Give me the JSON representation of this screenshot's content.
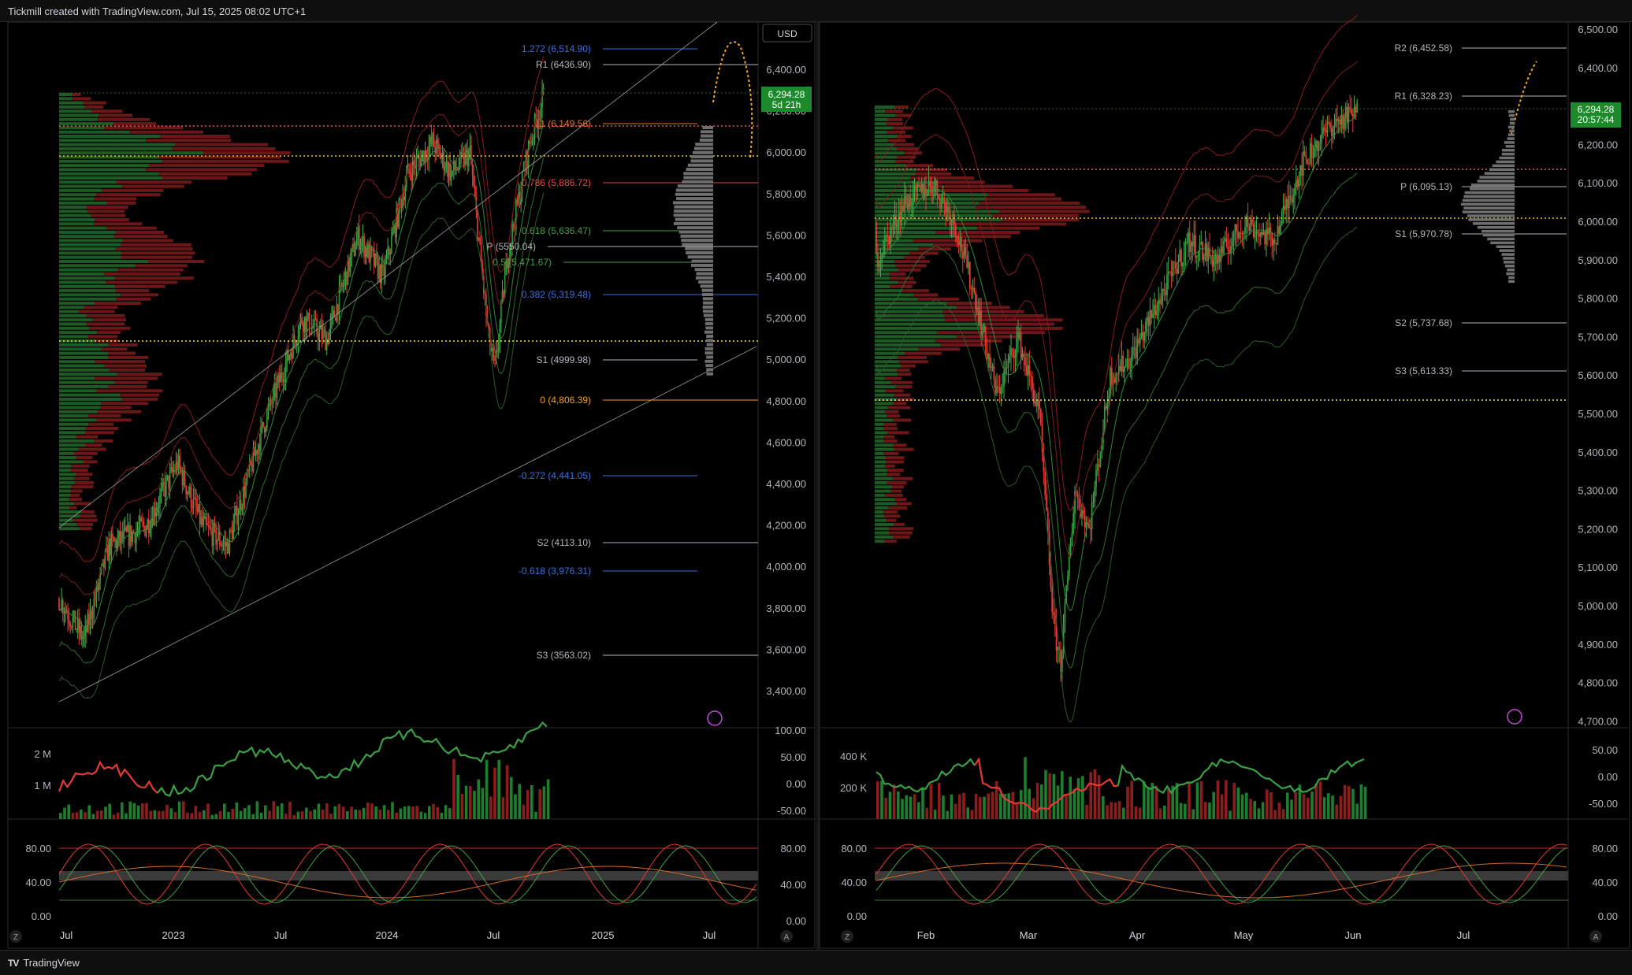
{
  "header": {
    "caption": "Tickmill created with TradingView.com, Jul 15, 2025 08:02 UTC+1"
  },
  "footer": {
    "brand": "TradingView"
  },
  "left": {
    "currency": "USD",
    "price_tag": "6,294.28",
    "countdown": "5d 21h",
    "price_axis": [
      "6,400.00",
      "6,200.00",
      "6,000.00",
      "5,800.00",
      "5,600.00",
      "5,400.00",
      "5,200.00",
      "5,000.00",
      "4,800.00",
      "4,600.00",
      "4,400.00",
      "4,200.00",
      "4,000.00",
      "3,800.00",
      "3,600.00",
      "3,400.00"
    ],
    "levels": [
      {
        "label": "1.272 (6,514.90)",
        "color": "#3d6fd8"
      },
      {
        "label": "R1 (6436.90)",
        "color": "#b2b5be"
      },
      {
        "label": "1 (6,149.56)",
        "color": "#e0723a"
      },
      {
        "label": "0.786 (5,886.72)",
        "color": "#e04a4a"
      },
      {
        "label": "0.618 (5,636.47)",
        "color": "#4c9a4c"
      },
      {
        "label": "P (5550.04)",
        "color": "#b2b5be"
      },
      {
        "label": "0.5 (5,471.67)",
        "color": "#4c9a4c"
      },
      {
        "label": "0.382 (5,319.48)",
        "color": "#3d6fd8"
      },
      {
        "label": "S1 (4999.98)",
        "color": "#b2b5be"
      },
      {
        "label": "0 (4,806.39)",
        "color": "#f0a030"
      },
      {
        "label": "-0.272 (4,441.05)",
        "color": "#3d6fd8"
      },
      {
        "label": "S2 (4113.10)",
        "color": "#b2b5be"
      },
      {
        "label": "-0.618 (3,976.31)",
        "color": "#3d6fd8"
      },
      {
        "label": "S3 (3563.02)",
        "color": "#b2b5be"
      }
    ],
    "vol_axis": [
      "2 M",
      "1 M"
    ],
    "vol_right_axis": [
      "100.00",
      "50.00",
      "0.00",
      "-50.00"
    ],
    "osc_axis": [
      "80.00",
      "40.00",
      "0.00"
    ],
    "osc_right_axis": [
      "80.00",
      "40.00",
      "0.00"
    ],
    "time_axis": [
      "Jul",
      "2023",
      "Jul",
      "2024",
      "Jul",
      "2025",
      "Jul"
    ]
  },
  "right": {
    "price_tag": "6,294.28",
    "countdown": "20:57:44",
    "price_axis": [
      "6,500.00",
      "6,400.00",
      "6,300.00",
      "6,200.00",
      "6,100.00",
      "6,000.00",
      "5,900.00",
      "5,800.00",
      "5,700.00",
      "5,600.00",
      "5,500.00",
      "5,400.00",
      "5,300.00",
      "5,200.00",
      "5,100.00",
      "5,000.00",
      "4,900.00",
      "4,800.00",
      "4,700.00"
    ],
    "levels": [
      {
        "label": "R2 (6,452.58)",
        "color": "#b2b5be"
      },
      {
        "label": "R1 (6,328.23)",
        "color": "#b2b5be"
      },
      {
        "label": "P (6,095.13)",
        "color": "#b2b5be"
      },
      {
        "label": "S1 (5,970.78)",
        "color": "#b2b5be"
      },
      {
        "label": "S2 (5,737.68)",
        "color": "#b2b5be"
      },
      {
        "label": "S3 (5,613.33)",
        "color": "#b2b5be"
      }
    ],
    "vol_axis": [
      "400 K",
      "200 K"
    ],
    "vol_right_axis": [
      "50.00",
      "0.00",
      "-50.00"
    ],
    "osc_axis": [
      "80.00",
      "40.00",
      "0.00"
    ],
    "osc_right_axis": [
      "80.00",
      "40.00",
      "0.00"
    ],
    "time_axis": [
      "Feb",
      "Mar",
      "Apr",
      "May",
      "Jun",
      "Jul"
    ]
  },
  "axis_badge": "A",
  "zoom_badge": "Z",
  "colors": {
    "up": "#2e7d32",
    "down": "#d32f2f",
    "bg": "#000000",
    "grid": "#1c1c1c"
  }
}
